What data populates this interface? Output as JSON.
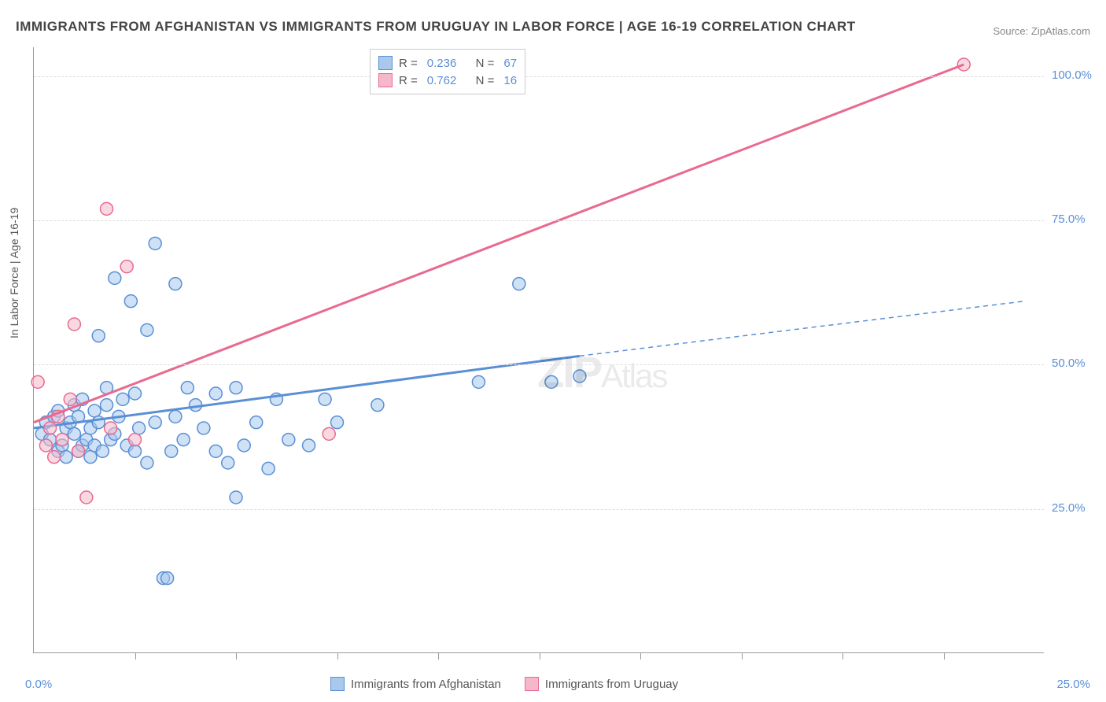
{
  "title": "IMMIGRANTS FROM AFGHANISTAN VS IMMIGRANTS FROM URUGUAY IN LABOR FORCE | AGE 16-19 CORRELATION CHART",
  "source_label": "Source: ",
  "source_name": "ZipAtlas.com",
  "y_axis_label": "In Labor Force | Age 16-19",
  "watermark_main": "ZIP",
  "watermark_sub": "Atlas",
  "chart": {
    "type": "scatter",
    "xlim": [
      0,
      25
    ],
    "ylim": [
      0,
      105
    ],
    "x_ticks": [
      0,
      2.5,
      5,
      7.5,
      10,
      12.5,
      15,
      17.5,
      20,
      22.5
    ],
    "x_tick_labels": [
      "0.0%",
      "",
      "",
      "",
      "",
      "",
      "",
      "",
      "",
      ""
    ],
    "y_ticks": [
      25,
      50,
      75,
      100
    ],
    "y_tick_labels": [
      "25.0%",
      "50.0%",
      "75.0%",
      "100.0%"
    ],
    "grid_color": "#dddddd",
    "axis_color": "#999999",
    "background_color": "#ffffff",
    "series": [
      {
        "name": "Immigrants from Afghanistan",
        "color_stroke": "#5a8fd6",
        "color_fill": "#a8c8ec",
        "fill_opacity": 0.55,
        "marker_radius": 8,
        "R": "0.236",
        "N": "67",
        "trend": {
          "x1": 0,
          "y1": 39,
          "x2": 13.5,
          "y2": 51.5,
          "x2_dash": 24.5,
          "y2_dash": 61
        },
        "points": [
          [
            0.2,
            38
          ],
          [
            0.3,
            40
          ],
          [
            0.4,
            37
          ],
          [
            0.5,
            41
          ],
          [
            0.6,
            35
          ],
          [
            0.6,
            42
          ],
          [
            0.7,
            36
          ],
          [
            0.8,
            39
          ],
          [
            0.8,
            34
          ],
          [
            0.9,
            40
          ],
          [
            1.0,
            38
          ],
          [
            1.0,
            43
          ],
          [
            1.1,
            35
          ],
          [
            1.1,
            41
          ],
          [
            1.2,
            36
          ],
          [
            1.2,
            44
          ],
          [
            1.3,
            37
          ],
          [
            1.4,
            39
          ],
          [
            1.4,
            34
          ],
          [
            1.5,
            42
          ],
          [
            1.5,
            36
          ],
          [
            1.6,
            55
          ],
          [
            1.6,
            40
          ],
          [
            1.7,
            35
          ],
          [
            1.8,
            43
          ],
          [
            1.8,
            46
          ],
          [
            1.9,
            37
          ],
          [
            2.0,
            65
          ],
          [
            2.0,
            38
          ],
          [
            2.1,
            41
          ],
          [
            2.2,
            44
          ],
          [
            2.3,
            36
          ],
          [
            2.4,
            61
          ],
          [
            2.5,
            35
          ],
          [
            2.5,
            45
          ],
          [
            2.6,
            39
          ],
          [
            2.8,
            56
          ],
          [
            2.8,
            33
          ],
          [
            3.0,
            40
          ],
          [
            3.0,
            71
          ],
          [
            3.2,
            13
          ],
          [
            3.3,
            13
          ],
          [
            3.4,
            35
          ],
          [
            3.5,
            41
          ],
          [
            3.5,
            64
          ],
          [
            3.7,
            37
          ],
          [
            3.8,
            46
          ],
          [
            4.0,
            43
          ],
          [
            4.2,
            39
          ],
          [
            4.5,
            35
          ],
          [
            4.5,
            45
          ],
          [
            4.8,
            33
          ],
          [
            5.0,
            46
          ],
          [
            5.0,
            27
          ],
          [
            5.2,
            36
          ],
          [
            5.5,
            40
          ],
          [
            5.8,
            32
          ],
          [
            6.0,
            44
          ],
          [
            6.3,
            37
          ],
          [
            6.8,
            36
          ],
          [
            7.2,
            44
          ],
          [
            7.5,
            40
          ],
          [
            8.5,
            43
          ],
          [
            11.0,
            47
          ],
          [
            12.0,
            64
          ],
          [
            12.8,
            47
          ],
          [
            13.5,
            48
          ]
        ]
      },
      {
        "name": "Immigrants from Uruguay",
        "color_stroke": "#e86a8f",
        "color_fill": "#f5b8ca",
        "fill_opacity": 0.55,
        "marker_radius": 8,
        "R": "0.762",
        "N": "16",
        "trend": {
          "x1": 0,
          "y1": 40,
          "x2": 23,
          "y2": 102
        },
        "points": [
          [
            0.1,
            47
          ],
          [
            0.3,
            36
          ],
          [
            0.4,
            39
          ],
          [
            0.5,
            34
          ],
          [
            0.6,
            41
          ],
          [
            0.7,
            37
          ],
          [
            0.9,
            44
          ],
          [
            1.0,
            57
          ],
          [
            1.1,
            35
          ],
          [
            1.3,
            27
          ],
          [
            1.8,
            77
          ],
          [
            2.3,
            67
          ],
          [
            1.9,
            39
          ],
          [
            2.5,
            37
          ],
          [
            7.3,
            38
          ],
          [
            23.0,
            102
          ]
        ]
      }
    ]
  },
  "legend_bottom": [
    {
      "label": "Immigrants from Afghanistan",
      "fill": "#a8c8ec",
      "stroke": "#5a8fd6"
    },
    {
      "label": "Immigrants from Uruguay",
      "fill": "#f5b8ca",
      "stroke": "#e86a8f"
    }
  ],
  "xtick_bottom_right": "25.0%"
}
